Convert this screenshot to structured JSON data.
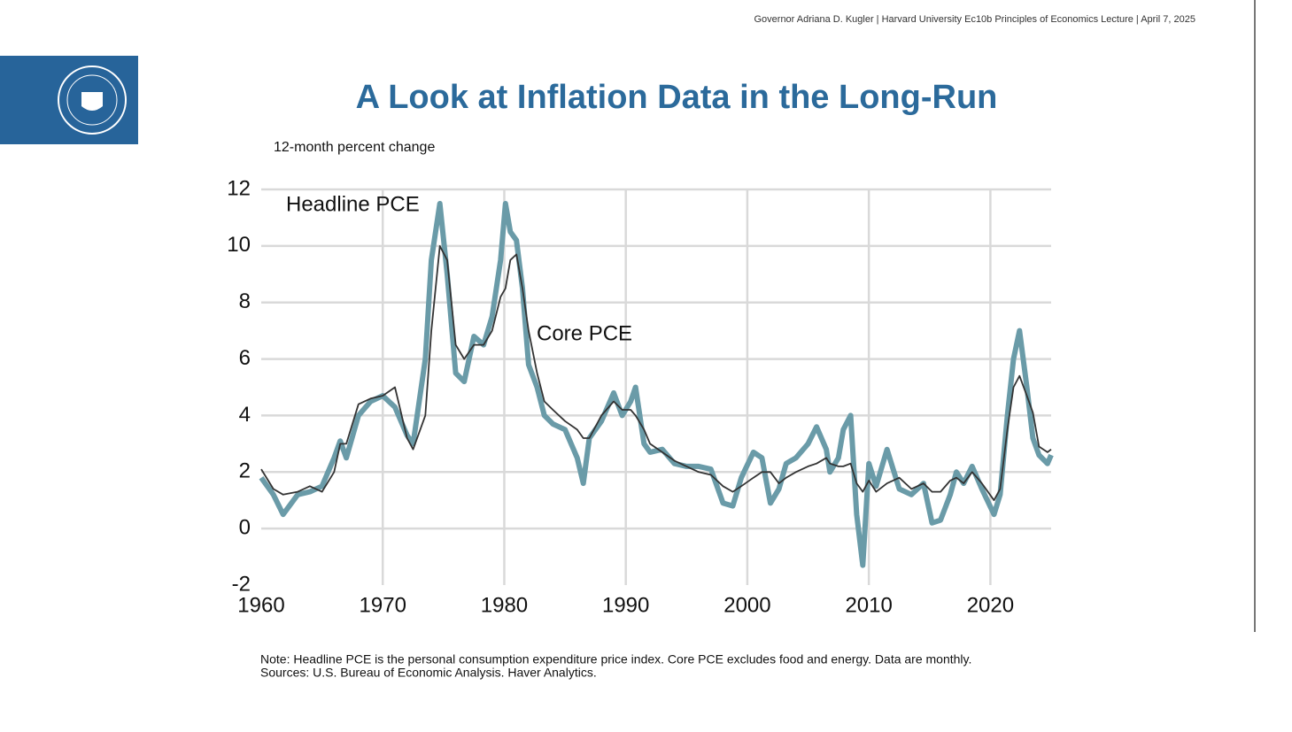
{
  "header": "Governor Adriana D. Kugler | Harvard University Ec10b Principles of Economics Lecture | April 7, 2025",
  "notes": [
    "Note: Headline PCE is the personal consumption expenditure price index. Core PCE excludes food and energy. Data are monthly.",
    "Sources: U.S. Bureau of Economic Analysis. Haver Analytics."
  ],
  "chart_data": {
    "type": "line",
    "title": "A Look at Inflation Data in the Long-Run",
    "y_label": "12-month percent change",
    "x": [
      1960,
      1961,
      1961.8,
      1963,
      1964,
      1965,
      1966,
      1966.5,
      1967,
      1968,
      1969,
      1970,
      1971,
      1972,
      1972.5,
      1973.5,
      1974,
      1974.7,
      1975.3,
      1976,
      1976.7,
      1977.5,
      1978.3,
      1979,
      1979.7,
      1980.1,
      1980.5,
      1981,
      1981.5,
      1982,
      1982.7,
      1983.3,
      1984,
      1985,
      1986,
      1986.5,
      1987,
      1988,
      1989,
      1989.7,
      1990.4,
      1990.8,
      1991.5,
      1992,
      1993,
      1994,
      1995,
      1996,
      1997,
      1998,
      1998.8,
      1999.5,
      2000.5,
      2001.2,
      2001.9,
      2002.6,
      2003.2,
      2004,
      2005,
      2005.7,
      2006.5,
      2006.8,
      2007.5,
      2007.9,
      2008.5,
      2009,
      2009.5,
      2010,
      2010.6,
      2011.5,
      2012.5,
      2013.5,
      2014.5,
      2015.2,
      2015.9,
      2016.7,
      2017.2,
      2017.8,
      2018.5,
      2019.3,
      2020.3,
      2020.8,
      2021.4,
      2021.9,
      2022.4,
      2023,
      2023.5,
      2024,
      2024.7,
      2025
    ],
    "series": [
      {
        "name": "Headline PCE",
        "color": "#6a9ba8",
        "values": [
          1.8,
          1.2,
          0.5,
          1.2,
          1.3,
          1.5,
          2.5,
          3.1,
          2.5,
          4.0,
          4.5,
          4.7,
          4.3,
          3.3,
          3.0,
          6.0,
          9.5,
          11.5,
          9.0,
          5.5,
          5.2,
          6.8,
          6.5,
          7.5,
          9.5,
          11.5,
          10.5,
          10.2,
          8.5,
          5.8,
          5.0,
          4.0,
          3.7,
          3.5,
          2.5,
          1.6,
          3.2,
          3.8,
          4.8,
          4.0,
          4.5,
          5.0,
          3.0,
          2.7,
          2.8,
          2.3,
          2.2,
          2.2,
          2.1,
          0.9,
          0.8,
          1.8,
          2.7,
          2.5,
          0.9,
          1.4,
          2.3,
          2.5,
          3.0,
          3.6,
          2.8,
          2.0,
          2.5,
          3.5,
          4.0,
          0.5,
          -1.3,
          2.3,
          1.5,
          2.8,
          1.4,
          1.2,
          1.6,
          0.2,
          0.3,
          1.2,
          2.0,
          1.6,
          2.2,
          1.4,
          0.5,
          1.2,
          4.0,
          6.0,
          7.0,
          5.0,
          3.2,
          2.6,
          2.3,
          2.6
        ]
      },
      {
        "name": "Core PCE",
        "color": "#333333",
        "values": [
          2.1,
          1.4,
          1.2,
          1.3,
          1.5,
          1.3,
          2.0,
          3.0,
          3.0,
          4.4,
          4.6,
          4.7,
          5.0,
          3.2,
          2.8,
          4.0,
          7.0,
          10.0,
          9.5,
          6.5,
          6.0,
          6.5,
          6.5,
          7.0,
          8.2,
          8.5,
          9.5,
          9.7,
          8.5,
          7.0,
          5.5,
          4.5,
          4.2,
          3.8,
          3.5,
          3.2,
          3.2,
          4.0,
          4.5,
          4.2,
          4.2,
          4.0,
          3.5,
          3.0,
          2.7,
          2.4,
          2.2,
          2.0,
          1.9,
          1.5,
          1.3,
          1.5,
          1.8,
          2.0,
          2.0,
          1.6,
          1.8,
          2.0,
          2.2,
          2.3,
          2.5,
          2.3,
          2.2,
          2.2,
          2.3,
          1.6,
          1.3,
          1.7,
          1.3,
          1.6,
          1.8,
          1.4,
          1.6,
          1.3,
          1.3,
          1.7,
          1.8,
          1.6,
          2.0,
          1.6,
          1.0,
          1.4,
          3.5,
          5.0,
          5.4,
          4.7,
          4.1,
          2.9,
          2.7,
          2.8
        ]
      }
    ],
    "xlim": [
      1960,
      2025
    ],
    "xticks": [
      1960,
      1970,
      1980,
      1990,
      2000,
      2010,
      2020
    ],
    "ylim": [
      -2,
      12
    ],
    "yticks": [
      -2,
      0,
      2,
      4,
      6,
      8,
      10,
      12
    ],
    "grid": true
  }
}
